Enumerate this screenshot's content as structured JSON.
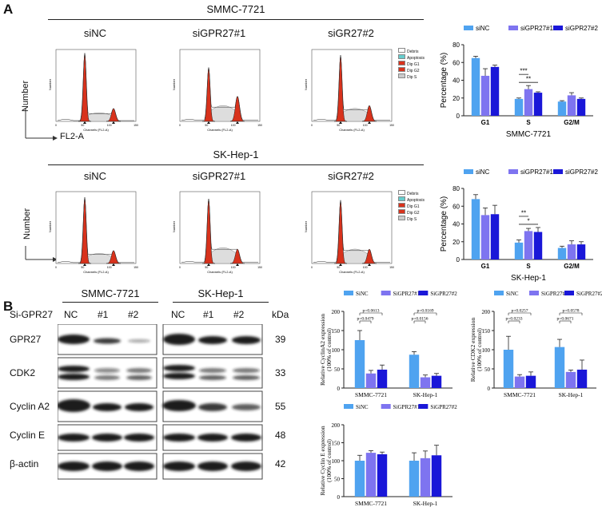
{
  "panel_a": {
    "letter": "A",
    "row1_title": "SMMC-7721",
    "row2_title": "SK-Hep-1",
    "conditions": [
      "siNC",
      "siGPR27#1",
      "siGR27#2"
    ],
    "y_axis": "Number",
    "x_axis": "FL2-A",
    "flow_legend": [
      "Debris",
      "Apoptosis",
      "Dip G1",
      "Dip G2",
      "Dip S"
    ],
    "flow_ylabel": "Number",
    "flow_xlabel": "Channels (FL2-A)",
    "flow_ticks": [
      "0",
      "50",
      "100",
      "150"
    ]
  },
  "panel_b": {
    "letter": "B",
    "cell_lines": [
      "SMMC-7721",
      "SK-Hep-1"
    ],
    "si_label": "Si-GPR27",
    "lanes": [
      "NC",
      "#1",
      "#2"
    ],
    "kda_header": "kDa",
    "proteins": [
      {
        "name": "GPR27",
        "kda": "39"
      },
      {
        "name": "CDK2",
        "kda": "33"
      },
      {
        "name": "Cyclin A2",
        "kda": "55"
      },
      {
        "name": "Cyclin E",
        "kda": "48"
      },
      {
        "name": "β-actin",
        "kda": "42"
      }
    ]
  },
  "colors": {
    "siNC": "#4fa3f0",
    "si1": "#7e74f0",
    "si2": "#1a17d8",
    "flow_red": "#d8321c"
  },
  "chart_data": [
    {
      "type": "bar",
      "id": "a_smmc",
      "categories": [
        "G1",
        "S",
        "G2/M"
      ],
      "series": [
        {
          "name": "siNC",
          "values": [
            65,
            19,
            16
          ],
          "errors": [
            2,
            1,
            1
          ]
        },
        {
          "name": "siGPR27#1",
          "values": [
            45,
            30,
            23
          ],
          "errors": [
            8,
            4,
            3
          ]
        },
        {
          "name": "siGPR27#2",
          "values": [
            55,
            26,
            19
          ],
          "errors": [
            2,
            1,
            1
          ]
        }
      ],
      "ylabel": "Percentage (%)",
      "xlabel": "SMMC-7721",
      "ylim": [
        0,
        80
      ],
      "yticks": [
        "0",
        "20",
        "40",
        "60",
        "80"
      ],
      "annotations": [
        "***",
        "**"
      ],
      "legend": "top"
    },
    {
      "type": "bar",
      "id": "a_skhep",
      "categories": [
        "G1",
        "S",
        "G2/M"
      ],
      "series": [
        {
          "name": "siNC",
          "values": [
            68,
            19,
            13
          ],
          "errors": [
            5,
            3,
            2
          ]
        },
        {
          "name": "siGPR27#1",
          "values": [
            50,
            32,
            17
          ],
          "errors": [
            8,
            3,
            4
          ]
        },
        {
          "name": "siGPR27#2",
          "values": [
            51,
            31,
            17
          ],
          "errors": [
            10,
            5,
            3
          ]
        }
      ],
      "ylabel": "Percentage (%)",
      "xlabel": "SK-Hep-1",
      "ylim": [
        0,
        80
      ],
      "yticks": [
        "0",
        "20",
        "40",
        "60",
        "80"
      ],
      "annotations": [
        "**",
        "*"
      ],
      "legend": "top"
    },
    {
      "type": "bar",
      "id": "b_cyclina2",
      "categories": [
        "SMMC-7721",
        "SK-Hep-1"
      ],
      "series": [
        {
          "name": "SiNC",
          "values": [
            125,
            87
          ],
          "errors": [
            25,
            8
          ]
        },
        {
          "name": "SiGPR27#1",
          "values": [
            38,
            28
          ],
          "errors": [
            8,
            6
          ]
        },
        {
          "name": "SiGPR27#2",
          "values": [
            48,
            32
          ],
          "errors": [
            12,
            6
          ]
        }
      ],
      "ylabel": "Relative CyclinA2 expression\n(100% of control)",
      "ylim": [
        0,
        200
      ],
      "yticks": [
        "0",
        "50",
        "100",
        "150",
        "200"
      ],
      "annotations": [
        "p=0.0613",
        "p=0.0479",
        "p=0.0169",
        "p=0.0156"
      ],
      "legend": "top"
    },
    {
      "type": "bar",
      "id": "b_cdk2",
      "categories": [
        "SMMC-7721",
        "SK-Hep-1"
      ],
      "series": [
        {
          "name": "SiNC",
          "values": [
            100,
            107
          ],
          "errors": [
            35,
            20
          ]
        },
        {
          "name": "SiGPR27#1",
          "values": [
            30,
            42
          ],
          "errors": [
            5,
            5
          ]
        },
        {
          "name": "SiGPR27#2",
          "values": [
            32,
            48
          ],
          "errors": [
            10,
            25
          ]
        }
      ],
      "ylabel": "Relative CDK2 expression\n(100% of control)",
      "ylim": [
        0,
        200
      ],
      "yticks": [
        "0",
        "50",
        "100",
        "150",
        "200"
      ],
      "annotations": [
        "p=0.0257",
        "p=0.0233",
        "p=0.0578",
        "p=0.0671"
      ],
      "legend": "top"
    },
    {
      "type": "bar",
      "id": "b_cycline",
      "categories": [
        "SMMC-7721",
        "SK-Hep-1"
      ],
      "series": [
        {
          "name": "SiNC",
          "values": [
            100,
            100
          ],
          "errors": [
            15,
            22
          ]
        },
        {
          "name": "SiGPR27#1",
          "values": [
            122,
            107
          ],
          "errors": [
            6,
            20
          ]
        },
        {
          "name": "SiGPR27#2",
          "values": [
            118,
            115
          ],
          "errors": [
            6,
            28
          ]
        }
      ],
      "ylabel": "Relative Cyclin E expression\n(100% of control)",
      "ylim": [
        0,
        200
      ],
      "yticks": [
        "0",
        "50",
        "100",
        "150",
        "200"
      ],
      "annotations": [],
      "legend": "top"
    }
  ]
}
